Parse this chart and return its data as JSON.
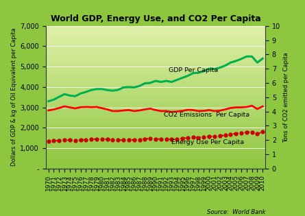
{
  "title": "World GDP, Energy Use, and CO2 Per Capita",
  "years": [
    1970,
    1971,
    1972,
    1973,
    1974,
    1975,
    1976,
    1977,
    1978,
    1979,
    1980,
    1981,
    1982,
    1983,
    1984,
    1985,
    1986,
    1987,
    1988,
    1989,
    1990,
    1991,
    1992,
    1993,
    1994,
    1995,
    1996,
    1997,
    1998,
    1999,
    2000,
    2001,
    2002,
    2003,
    2004,
    2005,
    2006,
    2007,
    2008,
    2009,
    2010
  ],
  "gdp": [
    3300,
    3380,
    3520,
    3650,
    3580,
    3550,
    3680,
    3760,
    3850,
    3900,
    3900,
    3850,
    3820,
    3860,
    3980,
    4000,
    3980,
    4050,
    4180,
    4200,
    4300,
    4250,
    4300,
    4250,
    4350,
    4450,
    4550,
    4680,
    4700,
    4780,
    4900,
    4880,
    4950,
    5050,
    5200,
    5280,
    5380,
    5500,
    5500,
    5200,
    5400
  ],
  "co2": [
    2850,
    2900,
    2970,
    3050,
    3000,
    2950,
    3010,
    3020,
    3010,
    3020,
    2960,
    2900,
    2820,
    2820,
    2850,
    2870,
    2820,
    2850,
    2900,
    2940,
    2870,
    2820,
    2820,
    2780,
    2800,
    2830,
    2880,
    2870,
    2820,
    2830,
    2870,
    2820,
    2840,
    2900,
    2970,
    3000,
    3000,
    3020,
    3080,
    2920,
    3050
  ],
  "energy": [
    1350,
    1360,
    1380,
    1400,
    1390,
    1380,
    1400,
    1420,
    1430,
    1450,
    1440,
    1430,
    1400,
    1390,
    1400,
    1410,
    1400,
    1420,
    1450,
    1470,
    1450,
    1440,
    1440,
    1430,
    1450,
    1480,
    1510,
    1530,
    1520,
    1540,
    1580,
    1570,
    1590,
    1640,
    1690,
    1720,
    1750,
    1780,
    1790,
    1700,
    1800
  ],
  "gdp_color": "#00b050",
  "co2_color": "#ff0000",
  "energy_color": "#cc0000",
  "bg_color_top": "#8dc63f",
  "bg_color_bottom": "#dff0a8",
  "left_ylabel": "Dollars of GDP & kg of Oil Equivalent per Capita",
  "right_ylabel": "Tons of CO2 emitted per Capita",
  "source_text": "Source:  World Bank",
  "left_ylim": [
    0,
    7000
  ],
  "right_ylim": [
    0,
    10
  ],
  "left_yticks": [
    0,
    1000,
    2000,
    3000,
    4000,
    5000,
    6000,
    7000
  ],
  "left_ytick_labels": [
    "-",
    "1,000",
    "2,000",
    "3,000",
    "4,000",
    "5,000",
    "6,000",
    "7,000"
  ],
  "right_yticks": [
    0,
    1,
    2,
    3,
    4,
    5,
    6,
    7,
    8,
    9,
    10
  ],
  "gdp_label": "GDP Per Capita",
  "co2_label": "CO2 Emissions  Per Capita",
  "energy_label": "Energy Use Per Capita",
  "fig_bg": "#8dc63f"
}
